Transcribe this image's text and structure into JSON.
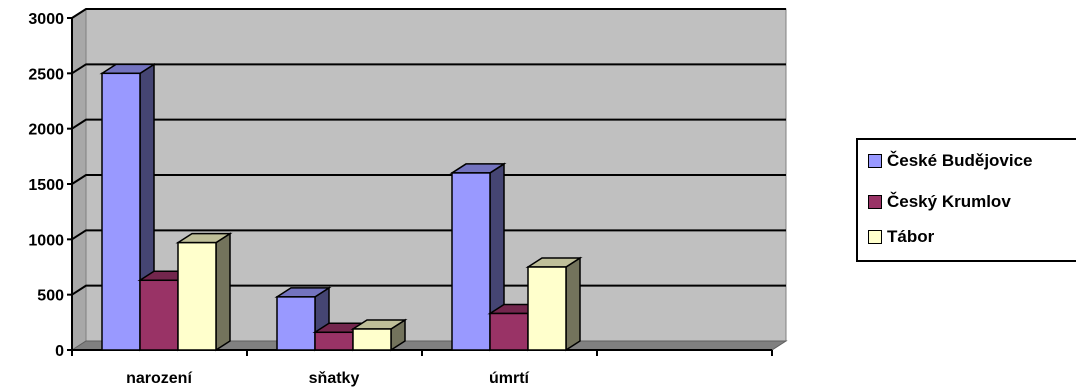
{
  "chart_data": {
    "type": "bar",
    "title": "",
    "xlabel": "",
    "ylabel": "",
    "categories": [
      "narození",
      "sňatky",
      "úmrtí",
      ""
    ],
    "series": [
      {
        "name": "České Budějovice",
        "values": [
          2500,
          480,
          1600,
          null
        ],
        "color": "#9999ff"
      },
      {
        "name": "Český Krumlov",
        "values": [
          630,
          160,
          330,
          null
        ],
        "color": "#993366"
      },
      {
        "name": "Tábor",
        "values": [
          970,
          190,
          750,
          null
        ],
        "color": "#ffffcc"
      }
    ],
    "ylim": [
      0,
      3000
    ],
    "yticks": [
      "0",
      "500",
      "1000",
      "1500",
      "2000",
      "2500",
      "3000"
    ],
    "grid": true,
    "legend_position": "right",
    "background_color": "#c0c0c0",
    "three_d": true
  }
}
